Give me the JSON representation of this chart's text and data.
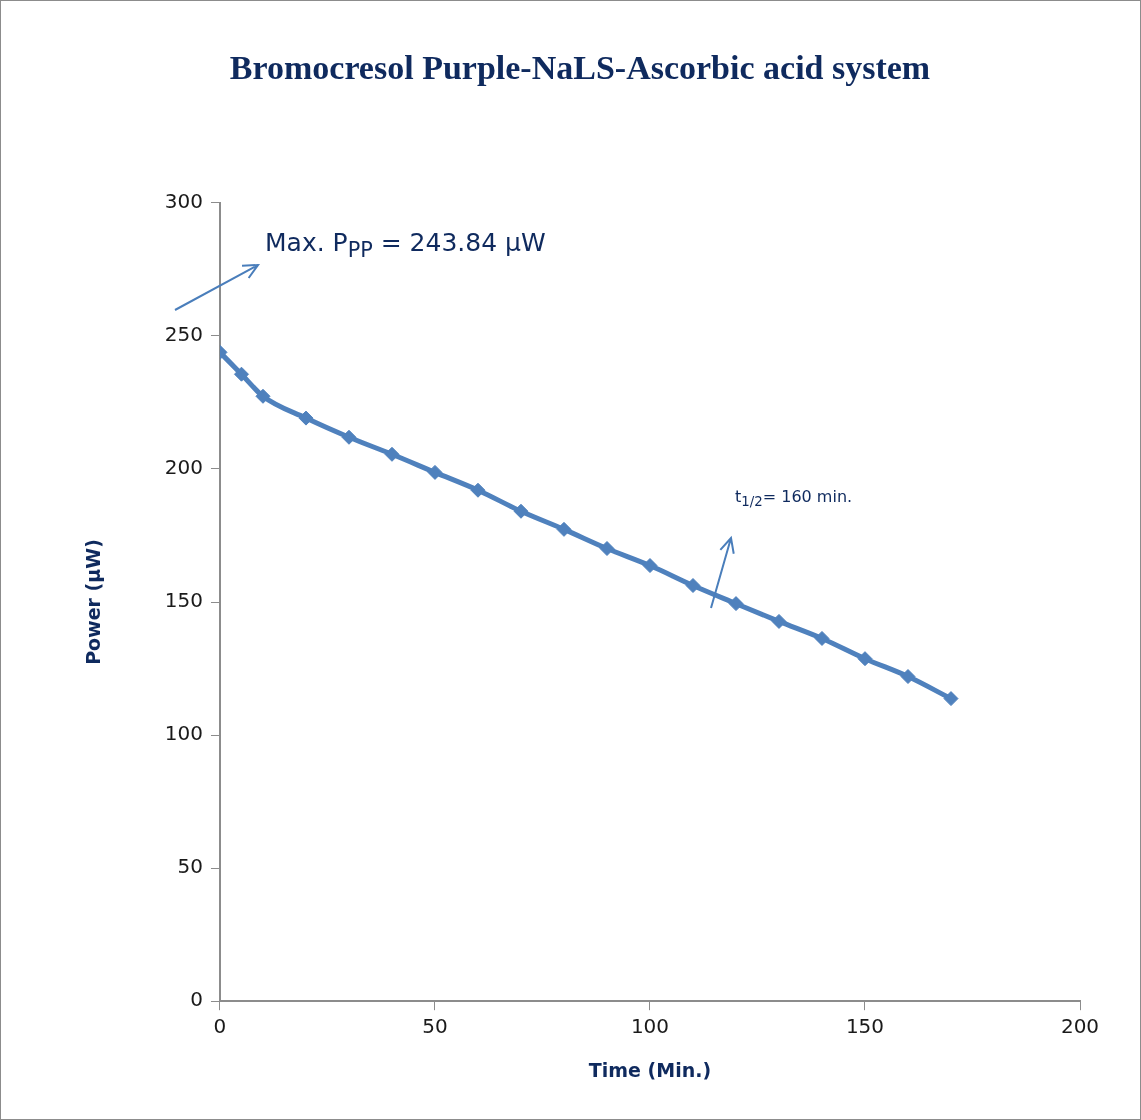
{
  "chart_data": {
    "type": "line",
    "title": "Bromocresol Purple-NaLS-Ascorbic acid system",
    "xlabel": "Time (Min.)",
    "ylabel": "Power (µW)",
    "annotations": [
      "Max. P$_{PP}$ = 243.84 µW",
      "t$_{1/2}$= 160 min."
    ],
    "x": [
      0,
      5,
      10,
      20,
      30,
      40,
      50,
      60,
      70,
      80,
      90,
      100,
      110,
      120,
      130,
      140,
      150,
      160,
      170
    ],
    "series": [
      {
        "color": "#4f81bd",
        "values": [
          243.8,
          235.6,
          227.3,
          219.1,
          211.9,
          205.5,
          198.7,
          192.0,
          184.1,
          177.3,
          170.1,
          163.7,
          156.2,
          149.4,
          142.7,
          136.3,
          128.7,
          122.0,
          113.7
        ]
      }
    ],
    "xlim": [
      0,
      200
    ],
    "xticks": [
      0,
      50,
      100,
      150,
      200
    ],
    "ylim": [
      0,
      300
    ],
    "yticks": [
      0,
      50,
      100,
      150,
      200,
      250,
      300
    ],
    "grid": false,
    "legend": false,
    "marker": "diamond",
    "line_style": "solid"
  }
}
